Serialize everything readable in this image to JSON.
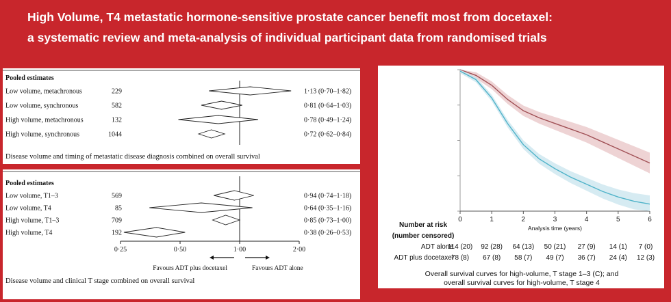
{
  "title": {
    "line1": "High Volume, T4  metastatic hormone-sensitive prostate cancer benefit  most from docetaxel:",
    "line2": "a systematic review and meta-analysis of individual participant data from randomised trials"
  },
  "chart_data": [
    {
      "type": "forest",
      "header": "Pooled estimates",
      "caption": "Disease volume and timing of metastatic disease diagnosis combined on overall survival",
      "rows": [
        {
          "label": "Low volume, metachronous",
          "n": "229",
          "hr": 1.13,
          "lo": 0.7,
          "hi": 1.82,
          "text": "1·13 (0·70–1·82)"
        },
        {
          "label": "Low volume, synchronous",
          "n": "582",
          "hr": 0.81,
          "lo": 0.64,
          "hi": 1.03,
          "text": "0·81 (0·64–1·03)"
        },
        {
          "label": "High volume, metachronous",
          "n": "132",
          "hr": 0.78,
          "lo": 0.49,
          "hi": 1.24,
          "text": "0·78 (0·49–1·24)"
        },
        {
          "label": "High volume, synchronous",
          "n": "1044",
          "hr": 0.72,
          "lo": 0.62,
          "hi": 0.84,
          "text": "0·72 (0·62–0·84)"
        }
      ]
    },
    {
      "type": "forest",
      "header": "Pooled estimates",
      "caption": "Disease volume and clinical T stage combined on overall survival",
      "xscale": "log",
      "xlim": [
        0.25,
        2.0
      ],
      "ticks": [
        0.25,
        0.5,
        1.0,
        2.0
      ],
      "tick_labels": [
        "0·25",
        "0·50",
        "1·00",
        "2·00"
      ],
      "favours_left": "Favours ADT plus docetaxel",
      "favours_right": "Favours ADT alone",
      "rows": [
        {
          "label": "Low volume, T1–3",
          "n": "569",
          "hr": 0.94,
          "lo": 0.74,
          "hi": 1.18,
          "text": "0·94 (0·74–1·18)"
        },
        {
          "label": "Low volume, T4",
          "n": "85",
          "hr": 0.64,
          "lo": 0.35,
          "hi": 1.16,
          "text": "0·64 (0·35–1·16)"
        },
        {
          "label": "High volume, T1–3",
          "n": "709",
          "hr": 0.85,
          "lo": 0.73,
          "hi": 1.0,
          "text": "0·85 (0·73–1·00)"
        },
        {
          "label": "High volume, T4",
          "n": "192",
          "hr": 0.38,
          "lo": 0.26,
          "hi": 0.53,
          "text": "0·38 (0·26–0·53)"
        }
      ]
    },
    {
      "type": "line",
      "xlabel": "Analysis time (years)",
      "xlim": [
        0,
        6
      ],
      "x_ticks": [
        "0",
        "1",
        "2",
        "3",
        "4",
        "5",
        "6"
      ],
      "ylim": [
        0,
        1
      ],
      "caption_line1": "Overall survival curves for high-volume, T stage 1–3 (C); and",
      "caption_line2": "overall survival curves for high-volume, T stage 4",
      "series": [
        {
          "name": "ADT alone",
          "color": "#a05055",
          "band_color": "#e8c4c6",
          "x": [
            0,
            0.5,
            1,
            1.5,
            2,
            2.5,
            3,
            3.5,
            4,
            4.5,
            5,
            5.5,
            6
          ],
          "y": [
            1.0,
            0.96,
            0.89,
            0.79,
            0.71,
            0.66,
            0.62,
            0.58,
            0.54,
            0.49,
            0.44,
            0.39,
            0.34
          ],
          "band": 0.06
        },
        {
          "name": "ADT plus docetaxel",
          "color": "#4fb3c9",
          "band_color": "#c8e4ee",
          "x": [
            0,
            0.5,
            1,
            1.5,
            2,
            2.5,
            3,
            3.5,
            4,
            4.5,
            5,
            5.5,
            6
          ],
          "y": [
            0.99,
            0.93,
            0.8,
            0.62,
            0.47,
            0.37,
            0.3,
            0.24,
            0.19,
            0.14,
            0.1,
            0.07,
            0.05
          ],
          "band": 0.05
        }
      ],
      "risk_table": {
        "title1": "Number at risk",
        "title2": "(number censored)",
        "rows": [
          {
            "label": "ADT alone",
            "values": [
              "114 (20)",
              "92 (28)",
              "64 (13)",
              "50 (21)",
              "27 (9)",
              "14 (1)",
              "7 (0)"
            ]
          },
          {
            "label": "ADT plus docetaxel",
            "values": [
              "78 (8)",
              "67 (8)",
              "58 (7)",
              "49 (7)",
              "36 (7)",
              "24 (4)",
              "12 (3)"
            ]
          }
        ]
      }
    }
  ]
}
